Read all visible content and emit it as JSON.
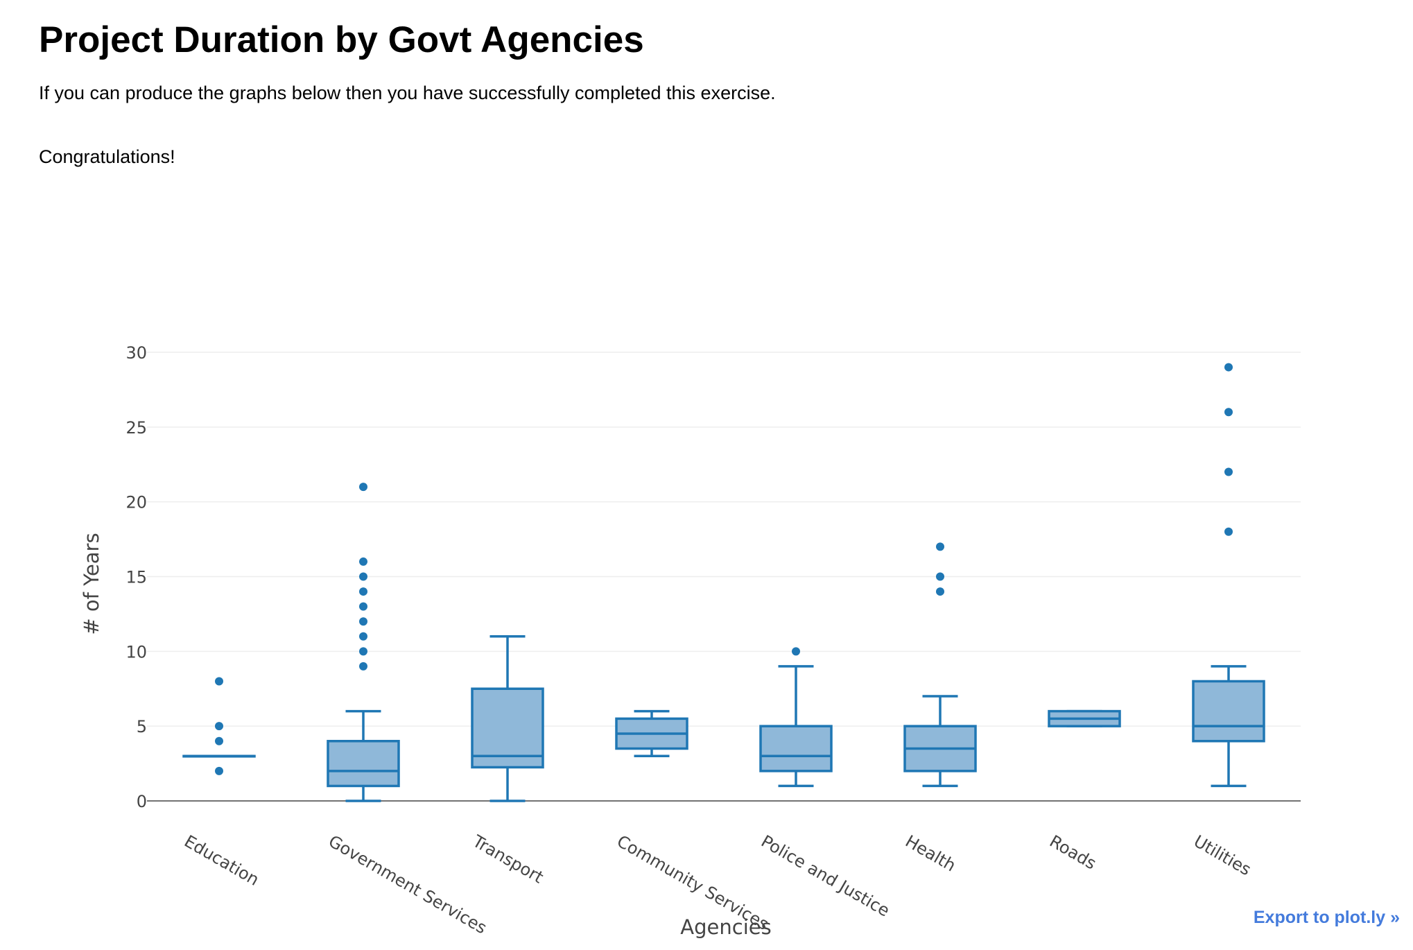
{
  "header": {
    "title": "Project Duration by Govt Agencies",
    "intro": "If you can produce the graphs below then you have successfully completed this exercise.",
    "congrats": "Congratulations!"
  },
  "export_link": "Export to plot.ly »",
  "colors": {
    "box_line": "#1f77b4",
    "box_fill": "#8fb8d9",
    "grid": "#eeeeee",
    "zero_line": "#444444",
    "text": "#444444",
    "link": "#447bdc"
  },
  "chart_data": {
    "type": "box",
    "title": "",
    "xlabel": "Agencies",
    "ylabel": "# of Years",
    "ylim": [
      0,
      30
    ],
    "yticks": [
      0,
      5,
      10,
      15,
      20,
      25,
      30
    ],
    "grid": true,
    "categories": [
      "Education",
      "Government Services",
      "Transport",
      "Community Services",
      "Police and Justice",
      "Health",
      "Roads",
      "Utilities"
    ],
    "boxes": [
      {
        "category": "Education",
        "lower_fence": 3,
        "q1": 3,
        "median": 3,
        "q3": 3,
        "upper_fence": 3,
        "outliers": [
          8,
          5,
          4,
          2
        ]
      },
      {
        "category": "Government Services",
        "lower_fence": 0,
        "q1": 1,
        "median": 2,
        "q3": 4,
        "upper_fence": 6,
        "outliers": [
          21,
          16,
          15,
          14,
          13,
          12,
          11,
          10,
          9
        ]
      },
      {
        "category": "Transport",
        "lower_fence": 0,
        "q1": 2.25,
        "median": 3,
        "q3": 7.5,
        "upper_fence": 11,
        "outliers": []
      },
      {
        "category": "Community Services",
        "lower_fence": 3,
        "q1": 3.5,
        "median": 4.5,
        "q3": 5.5,
        "upper_fence": 6,
        "outliers": []
      },
      {
        "category": "Police and Justice",
        "lower_fence": 1,
        "q1": 2,
        "median": 3,
        "q3": 5,
        "upper_fence": 9,
        "outliers": [
          10
        ]
      },
      {
        "category": "Health",
        "lower_fence": 1,
        "q1": 2,
        "median": 3.5,
        "q3": 5,
        "upper_fence": 7,
        "outliers": [
          17,
          15,
          14
        ]
      },
      {
        "category": "Roads",
        "lower_fence": 5,
        "q1": 5,
        "median": 5.5,
        "q3": 6,
        "upper_fence": 6,
        "outliers": []
      },
      {
        "category": "Utilities",
        "lower_fence": 1,
        "q1": 4,
        "median": 5,
        "q3": 8,
        "upper_fence": 9,
        "outliers": [
          29,
          26,
          22,
          18
        ]
      }
    ]
  }
}
